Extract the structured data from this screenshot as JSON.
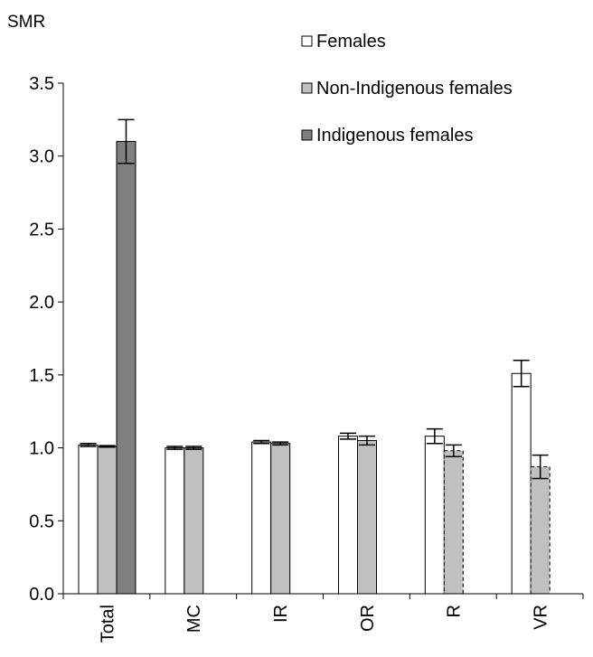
{
  "chart_data": {
    "type": "bar",
    "ylabel": "SMR",
    "ylim": [
      0,
      3.5
    ],
    "yticks": [
      "0.0",
      "0.5",
      "1.0",
      "1.5",
      "2.0",
      "2.5",
      "3.0",
      "3.5"
    ],
    "categories": [
      "Total",
      "MC",
      "IR",
      "OR",
      "R",
      "VR"
    ],
    "legend_position": "top-right",
    "series": [
      {
        "name": "Females",
        "color": "#ffffff",
        "values": [
          1.02,
          1.0,
          1.04,
          1.08,
          1.08,
          1.51
        ],
        "error": [
          0.01,
          0.01,
          0.01,
          0.02,
          0.05,
          0.09
        ]
      },
      {
        "name": "Non-Indigenous females",
        "color": "#c0c0c0",
        "values": [
          1.01,
          1.0,
          1.03,
          1.05,
          0.98,
          0.87
        ],
        "error": [
          0.005,
          0.01,
          0.01,
          0.03,
          0.04,
          0.08
        ]
      },
      {
        "name": "Indigenous females",
        "color": "#808080",
        "values": [
          3.1,
          null,
          null,
          null,
          null,
          null
        ],
        "error": [
          0.15,
          null,
          null,
          null,
          null,
          null
        ]
      }
    ]
  }
}
